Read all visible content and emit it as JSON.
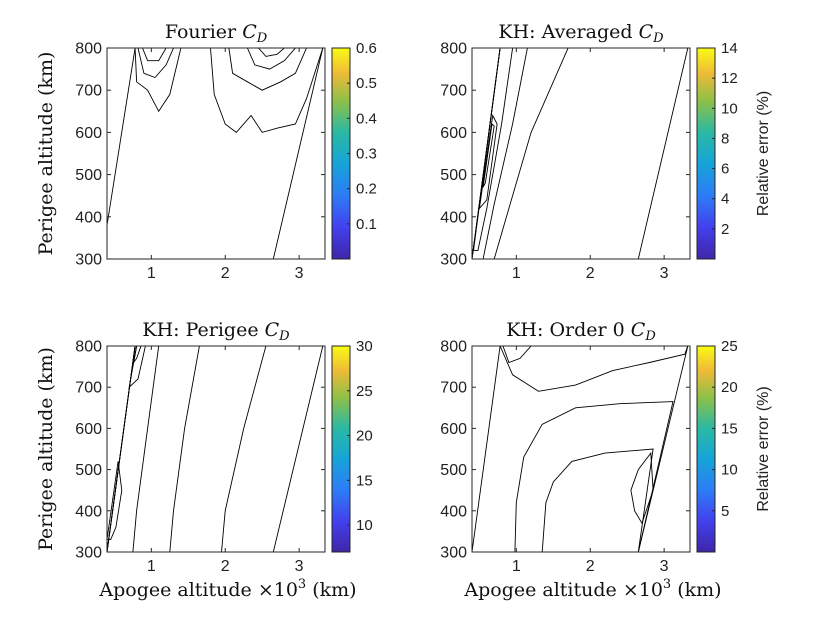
{
  "chart_data": [
    {
      "id": "fourier",
      "type": "contour",
      "title_main": "Fourier ",
      "title_sym": "C",
      "title_sub": "D",
      "ylabel": "Perigee altitude (km)",
      "xlabel": "",
      "xlabel_sup": "",
      "xlabel_tail": "",
      "xlim": [
        0.4,
        3.35
      ],
      "ylim": [
        300,
        800
      ],
      "xticks": [
        1,
        2,
        3
      ],
      "yticks": [
        300,
        400,
        500,
        600,
        700,
        800
      ],
      "colorbar": {
        "ticks": [
          0.1,
          0.2,
          0.3,
          0.4,
          0.5,
          0.6
        ],
        "range": [
          0.0,
          0.6
        ],
        "label": ""
      },
      "domain": {
        "left_bottom_x": 0.4,
        "left_top_x": 0.78,
        "right_bottom_x": 2.65,
        "right_top_x": 3.32
      },
      "regions": [
        {
          "level": 0.03,
          "polygon": [
            [
              0.4,
              300
            ],
            [
              0.4,
              380
            ],
            [
              0.78,
              800
            ],
            [
              3.32,
              800
            ],
            [
              2.65,
              300
            ]
          ]
        },
        {
          "level": 0.12,
          "polygon": [
            [
              0.78,
              800
            ],
            [
              0.8,
              720
            ],
            [
              0.95,
              700
            ],
            [
              1.1,
              650
            ],
            [
              1.25,
              690
            ],
            [
              1.4,
              800
            ]
          ]
        },
        {
          "level": 0.12,
          "polygon": [
            [
              1.8,
              800
            ],
            [
              1.85,
              690
            ],
            [
              2.0,
              620
            ],
            [
              2.15,
              600
            ],
            [
              2.35,
              640
            ],
            [
              2.5,
              600
            ],
            [
              2.7,
              610
            ],
            [
              2.95,
              620
            ],
            [
              3.1,
              680
            ],
            [
              3.32,
              800
            ]
          ]
        },
        {
          "level": 0.2,
          "polygon": [
            [
              0.82,
              800
            ],
            [
              0.9,
              740
            ],
            [
              1.05,
              730
            ],
            [
              1.2,
              760
            ],
            [
              1.3,
              800
            ]
          ]
        },
        {
          "level": 0.22,
          "polygon": [
            [
              2.05,
              800
            ],
            [
              2.1,
              740
            ],
            [
              2.3,
              720
            ],
            [
              2.5,
              700
            ],
            [
              2.75,
              720
            ],
            [
              2.95,
              740
            ],
            [
              3.1,
              800
            ]
          ]
        },
        {
          "level": 0.35,
          "polygon": [
            [
              0.88,
              800
            ],
            [
              0.95,
              770
            ],
            [
              1.1,
              770
            ],
            [
              1.2,
              800
            ]
          ]
        },
        {
          "level": 0.33,
          "polygon": [
            [
              2.3,
              800
            ],
            [
              2.4,
              760
            ],
            [
              2.6,
              750
            ],
            [
              2.8,
              770
            ],
            [
              2.95,
              800
            ]
          ]
        },
        {
          "level": 0.5,
          "polygon": [
            [
              2.45,
              800
            ],
            [
              2.55,
              780
            ],
            [
              2.7,
              785
            ],
            [
              2.8,
              800
            ]
          ]
        }
      ]
    },
    {
      "id": "kh-averaged",
      "type": "contour",
      "title_main": "KH: Averaged ",
      "title_sym": "C",
      "title_sub": "D",
      "ylabel": "",
      "xlabel": "",
      "xlabel_sup": "",
      "xlabel_tail": "",
      "xlim": [
        0.4,
        3.35
      ],
      "ylim": [
        300,
        800
      ],
      "xticks": [
        1,
        2,
        3
      ],
      "yticks": [
        300,
        400,
        500,
        600,
        700,
        800
      ],
      "colorbar": {
        "ticks": [
          2,
          4,
          6,
          8,
          10,
          12,
          14
        ],
        "range": [
          0,
          14
        ],
        "label": "Relative error (%)"
      },
      "domain": {
        "left_bottom_x": 0.4,
        "left_top_x": 0.78,
        "right_bottom_x": 2.65,
        "right_top_x": 3.32
      },
      "regions": [
        {
          "level": 0.8,
          "polygon": [
            [
              0.4,
              300
            ],
            [
              0.78,
              800
            ],
            [
              3.32,
              800
            ],
            [
              2.65,
              300
            ]
          ]
        },
        {
          "level": 3.0,
          "polygon": [
            [
              0.4,
              300
            ],
            [
              0.78,
              800
            ],
            [
              1.7,
              800
            ],
            [
              1.2,
              600
            ],
            [
              0.9,
              420
            ],
            [
              0.7,
              300
            ]
          ]
        },
        {
          "level": 5.0,
          "polygon": [
            [
              0.4,
              300
            ],
            [
              0.78,
              800
            ],
            [
              1.15,
              800
            ],
            [
              0.95,
              620
            ],
            [
              0.7,
              430
            ],
            [
              0.55,
              300
            ]
          ]
        },
        {
          "level": 7.0,
          "polygon": [
            [
              0.42,
              320
            ],
            [
              0.78,
              800
            ],
            [
              0.95,
              800
            ],
            [
              0.8,
              620
            ],
            [
              0.6,
              420
            ],
            [
              0.48,
              320
            ]
          ]
        },
        {
          "level": 10.5,
          "polygon": [
            [
              0.5,
              420
            ],
            [
              0.68,
              640
            ],
            [
              0.74,
              620
            ],
            [
              0.6,
              440
            ]
          ]
        },
        {
          "level": 13.0,
          "polygon": [
            [
              0.55,
              470
            ],
            [
              0.67,
              620
            ],
            [
              0.7,
              615
            ],
            [
              0.58,
              480
            ]
          ]
        }
      ]
    },
    {
      "id": "kh-perigee",
      "type": "contour",
      "title_main": "KH: Perigee ",
      "title_sym": "C",
      "title_sub": "D",
      "ylabel": "Perigee altitude (km)",
      "xlabel": "Apogee altitude ×10",
      "xlabel_sup": "3",
      "xlabel_tail": " (km)",
      "xlim": [
        0.4,
        3.35
      ],
      "ylim": [
        300,
        800
      ],
      "xticks": [
        1,
        2,
        3
      ],
      "yticks": [
        300,
        400,
        500,
        600,
        700,
        800
      ],
      "colorbar": {
        "ticks": [
          10,
          15,
          20,
          25,
          30
        ],
        "range": [
          7,
          30
        ],
        "label": ""
      },
      "domain": {
        "left_bottom_x": 0.4,
        "left_top_x": 0.78,
        "right_bottom_x": 2.65,
        "right_top_x": 3.32
      },
      "regions": [
        {
          "level": 8.5,
          "polygon": [
            [
              0.4,
              300
            ],
            [
              0.78,
              800
            ],
            [
              3.32,
              800
            ],
            [
              2.65,
              300
            ]
          ]
        },
        {
          "level": 10.0,
          "polygon": [
            [
              0.4,
              300
            ],
            [
              0.78,
              800
            ],
            [
              2.55,
              800
            ],
            [
              2.25,
              600
            ],
            [
              2.0,
              400
            ],
            [
              1.95,
              300
            ]
          ]
        },
        {
          "level": 11.5,
          "polygon": [
            [
              0.4,
              300
            ],
            [
              0.78,
              800
            ],
            [
              1.65,
              800
            ],
            [
              1.45,
              600
            ],
            [
              1.3,
              400
            ],
            [
              1.25,
              300
            ]
          ]
        },
        {
          "level": 13.5,
          "polygon": [
            [
              0.4,
              300
            ],
            [
              0.78,
              800
            ],
            [
              1.1,
              800
            ],
            [
              0.95,
              600
            ],
            [
              0.8,
              400
            ],
            [
              0.75,
              300
            ]
          ]
        },
        {
          "level": 15.5,
          "polygon": [
            [
              0.4,
              330
            ],
            [
              0.55,
              520
            ],
            [
              0.6,
              450
            ],
            [
              0.52,
              360
            ],
            [
              0.45,
              330
            ]
          ]
        },
        {
          "level": 17.0,
          "polygon": [
            [
              0.7,
              700
            ],
            [
              0.8,
              800
            ],
            [
              0.92,
              800
            ],
            [
              0.82,
              720
            ]
          ]
        },
        {
          "level": 22.0,
          "polygon": [
            [
              0.76,
              760
            ],
            [
              0.8,
              800
            ],
            [
              0.86,
              800
            ],
            [
              0.8,
              770
            ]
          ]
        }
      ]
    },
    {
      "id": "kh-order0",
      "type": "contour",
      "title_main": "KH: Order 0 ",
      "title_sym": "C",
      "title_sub": "D",
      "ylabel": "",
      "xlabel": "Apogee altitude ×10",
      "xlabel_sup": "3",
      "xlabel_tail": " (km)",
      "xlim": [
        0.4,
        3.35
      ],
      "ylim": [
        300,
        800
      ],
      "xticks": [
        1,
        2,
        3
      ],
      "yticks": [
        300,
        400,
        500,
        600,
        700,
        800
      ],
      "colorbar": {
        "ticks": [
          5,
          10,
          15,
          20,
          25
        ],
        "range": [
          0,
          25
        ],
        "label": "Relative error (%)"
      },
      "domain": {
        "left_bottom_x": 0.4,
        "left_top_x": 0.78,
        "right_bottom_x": 2.65,
        "right_top_x": 3.32
      },
      "regions": [
        {
          "level": 10.5,
          "polygon": [
            [
              0.4,
              300
            ],
            [
              0.78,
              800
            ],
            [
              3.32,
              800
            ],
            [
              2.65,
              300
            ]
          ]
        },
        {
          "level": 5.0,
          "polygon": [
            [
              0.78,
              800
            ],
            [
              0.95,
              730
            ],
            [
              1.3,
              690
            ],
            [
              1.8,
              705
            ],
            [
              2.3,
              740
            ],
            [
              2.8,
              760
            ],
            [
              3.28,
              780
            ],
            [
              3.32,
              800
            ]
          ]
        },
        {
          "level": 1.5,
          "polygon": [
            [
              0.82,
              800
            ],
            [
              0.9,
              760
            ],
            [
              1.05,
              770
            ],
            [
              1.2,
              800
            ]
          ]
        },
        {
          "level": 15.5,
          "polygon": [
            [
              0.98,
              300
            ],
            [
              1.0,
              420
            ],
            [
              1.1,
              530
            ],
            [
              1.35,
              610
            ],
            [
              1.8,
              650
            ],
            [
              2.4,
              660
            ],
            [
              3.12,
              665
            ],
            [
              2.65,
              300
            ]
          ]
        },
        {
          "level": 21.0,
          "polygon": [
            [
              1.35,
              300
            ],
            [
              1.4,
              420
            ],
            [
              1.5,
              470
            ],
            [
              1.75,
              520
            ],
            [
              2.2,
              540
            ],
            [
              2.85,
              550
            ],
            [
              2.65,
              300
            ]
          ]
        },
        {
          "level": 24.8,
          "polygon": [
            [
              2.6,
              400
            ],
            [
              2.55,
              450
            ],
            [
              2.65,
              500
            ],
            [
              2.82,
              540
            ],
            [
              2.85,
              450
            ],
            [
              2.7,
              370
            ]
          ]
        }
      ]
    }
  ]
}
